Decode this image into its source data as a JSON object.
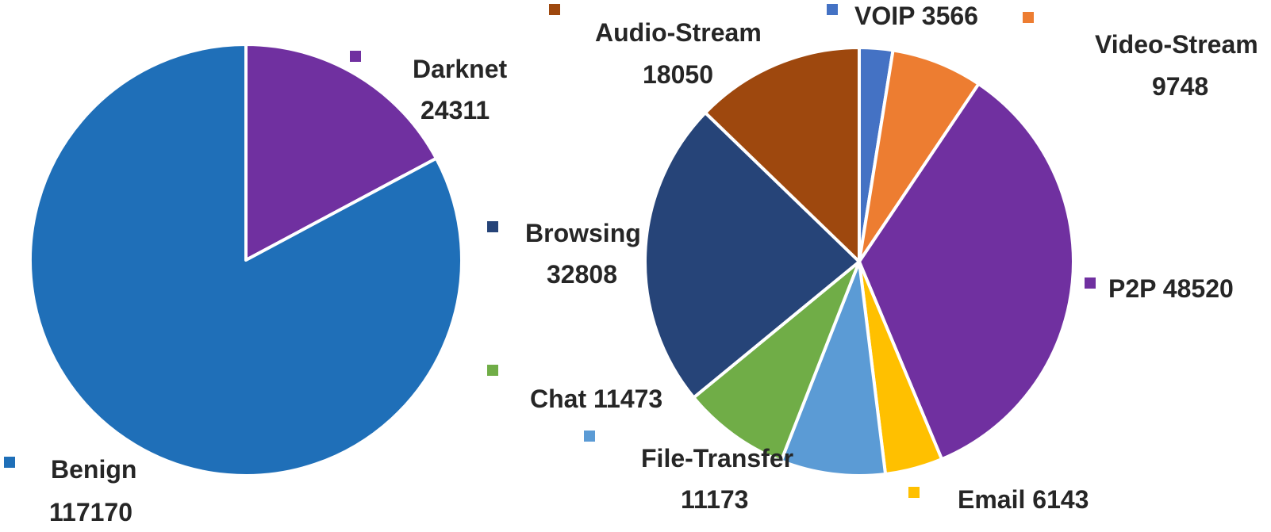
{
  "chart_data": [
    {
      "type": "pie",
      "title": "",
      "slices": [
        {
          "label": "Darknet",
          "value": 24311,
          "color": "#7030A0"
        },
        {
          "label": "Benign",
          "value": 117170,
          "color": "#1F6FB8"
        }
      ]
    },
    {
      "type": "pie",
      "title": "",
      "slices": [
        {
          "label": "VOIP",
          "value": 3566,
          "color": "#4472C4"
        },
        {
          "label": "Video-Stream",
          "value": 9748,
          "color": "#ED7D31"
        },
        {
          "label": "P2P",
          "value": 48520,
          "color": "#7030A0"
        },
        {
          "label": "Email",
          "value": 6143,
          "color": "#FFC000"
        },
        {
          "label": "File-Transfer",
          "value": 11173,
          "color": "#5B9BD5"
        },
        {
          "label": "Chat",
          "value": 11473,
          "color": "#70AD47"
        },
        {
          "label": "Browsing",
          "value": 32808,
          "color": "#264478"
        },
        {
          "label": "Audio-Stream",
          "value": 18050,
          "color": "#9E480E"
        }
      ]
    }
  ]
}
